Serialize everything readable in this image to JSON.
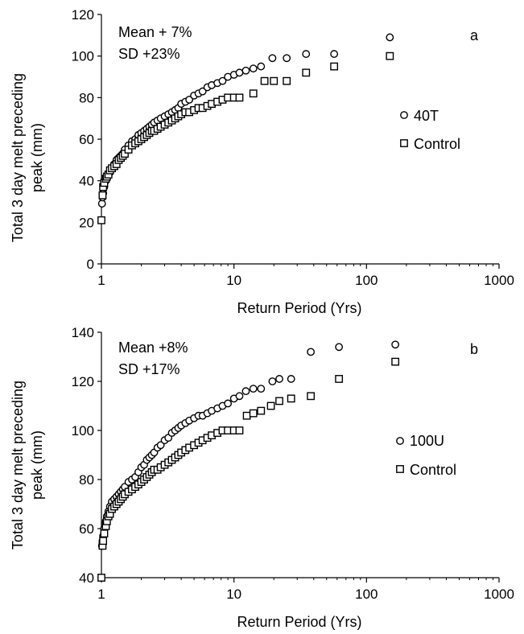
{
  "chart_data": [
    {
      "type": "scatter",
      "panel_label": "a",
      "annotations": [
        "Mean + 7%",
        "SD +23%"
      ],
      "xlabel": "Return Period (Yrs)",
      "ylabel_lines": [
        "Total 3 day melt preceding",
        "peak (mm)"
      ],
      "x_scale": "log",
      "xlim": [
        1,
        1000
      ],
      "ylim": [
        0,
        120
      ],
      "x_ticks": [
        1,
        10,
        100,
        1000
      ],
      "x_tick_labels": [
        "1",
        "10",
        "100",
        "1000"
      ],
      "y_ticks": [
        0,
        20,
        40,
        60,
        80,
        100,
        120
      ],
      "y_tick_labels": [
        "0",
        "20",
        "40",
        "60",
        "80",
        "100",
        "120"
      ],
      "legend_position": "right",
      "series": [
        {
          "name": "40T",
          "marker": "circle",
          "x": [
            1.01,
            1.02,
            1.03,
            1.05,
            1.08,
            1.1,
            1.13,
            1.16,
            1.2,
            1.25,
            1.3,
            1.35,
            1.4,
            1.45,
            1.5,
            1.6,
            1.7,
            1.8,
            1.9,
            2.0,
            2.1,
            2.2,
            2.3,
            2.4,
            2.5,
            2.65,
            2.8,
            3.0,
            3.2,
            3.4,
            3.6,
            3.8,
            4.0,
            4.3,
            4.6,
            5.0,
            5.4,
            5.8,
            6.3,
            6.8,
            7.5,
            8.2,
            9.0,
            10.0,
            11.0,
            12.3,
            14.0,
            16.0,
            19.5,
            25.0,
            35.0,
            57.0,
            150.0
          ],
          "y": [
            29,
            32,
            34,
            37,
            40,
            41,
            43,
            44,
            46,
            48,
            50,
            51,
            52,
            53,
            55,
            57,
            59,
            60,
            62,
            63,
            64,
            65,
            66,
            67,
            68,
            69,
            70,
            71,
            72,
            73,
            74,
            75,
            77,
            78,
            79,
            81,
            82,
            83,
            85,
            86,
            87,
            88,
            90,
            91,
            92,
            93,
            94,
            95,
            99,
            99,
            101,
            101,
            109
          ]
        },
        {
          "name": "Control",
          "marker": "square",
          "x": [
            1.0,
            1.02,
            1.03,
            1.05,
            1.08,
            1.1,
            1.13,
            1.16,
            1.2,
            1.25,
            1.3,
            1.35,
            1.4,
            1.45,
            1.5,
            1.6,
            1.7,
            1.8,
            1.9,
            2.0,
            2.1,
            2.2,
            2.3,
            2.4,
            2.5,
            2.65,
            2.8,
            3.0,
            3.2,
            3.4,
            3.6,
            3.8,
            4.0,
            4.3,
            4.6,
            5.0,
            5.4,
            5.8,
            6.3,
            6.8,
            7.5,
            8.2,
            9.0,
            10.0,
            11.0,
            14.0,
            17.0,
            20.0,
            25.0,
            35.0,
            57.0,
            150.0
          ],
          "y": [
            21,
            33,
            37,
            39,
            41,
            42,
            43,
            45,
            46,
            47,
            48,
            50,
            51,
            52,
            53,
            55,
            57,
            58,
            59,
            60,
            61,
            62,
            63,
            64,
            64,
            65,
            66,
            67,
            68,
            69,
            70,
            71,
            72,
            73,
            73,
            74,
            75,
            75,
            76,
            77,
            78,
            79,
            80,
            80,
            80,
            82,
            88,
            88,
            88,
            92,
            95,
            100
          ]
        }
      ]
    },
    {
      "type": "scatter",
      "panel_label": "b",
      "annotations": [
        "Mean +8%",
        "SD +17%"
      ],
      "xlabel": "Return Period (Yrs)",
      "ylabel_lines": [
        "Total 3 day melt preceding",
        "peak (mm)"
      ],
      "x_scale": "log",
      "xlim": [
        1,
        1000
      ],
      "ylim": [
        40,
        140
      ],
      "x_ticks": [
        1,
        10,
        100,
        1000
      ],
      "x_tick_labels": [
        "1",
        "10",
        "100",
        "1000"
      ],
      "y_ticks": [
        40,
        60,
        80,
        100,
        120,
        140
      ],
      "y_tick_labels": [
        "40",
        "60",
        "80",
        "100",
        "120",
        "140"
      ],
      "legend_position": "right",
      "series": [
        {
          "name": "100U",
          "marker": "circle",
          "x": [
            1.01,
            1.02,
            1.03,
            1.05,
            1.08,
            1.1,
            1.13,
            1.16,
            1.2,
            1.25,
            1.3,
            1.35,
            1.4,
            1.45,
            1.5,
            1.6,
            1.7,
            1.8,
            1.9,
            2.0,
            2.1,
            2.2,
            2.3,
            2.4,
            2.5,
            2.65,
            2.8,
            3.0,
            3.2,
            3.4,
            3.6,
            3.8,
            4.0,
            4.3,
            4.6,
            5.0,
            5.4,
            5.8,
            6.3,
            6.8,
            7.5,
            8.2,
            9.0,
            10.0,
            11.0,
            12.3,
            14.0,
            16.0,
            19.5,
            22.0,
            27.0,
            38.0,
            62.0,
            165.0
          ],
          "y": [
            53,
            55,
            57,
            60,
            63,
            65,
            67,
            69,
            71,
            72,
            73,
            74,
            75,
            76,
            77,
            79,
            80,
            81,
            83,
            85,
            86,
            88,
            89,
            90,
            91,
            93,
            94,
            96,
            97,
            99,
            100,
            101,
            102,
            103,
            104,
            105,
            106,
            106,
            107,
            108,
            109,
            110,
            111,
            113,
            114,
            116,
            117,
            117,
            120,
            121,
            121,
            132,
            134,
            135
          ]
        },
        {
          "name": "Control",
          "marker": "square",
          "x": [
            1.0,
            1.02,
            1.03,
            1.05,
            1.08,
            1.1,
            1.13,
            1.16,
            1.2,
            1.25,
            1.3,
            1.35,
            1.4,
            1.45,
            1.5,
            1.6,
            1.7,
            1.8,
            1.9,
            2.0,
            2.1,
            2.2,
            2.3,
            2.4,
            2.5,
            2.65,
            2.8,
            3.0,
            3.2,
            3.4,
            3.6,
            3.8,
            4.0,
            4.3,
            4.6,
            5.0,
            5.4,
            5.8,
            6.3,
            6.8,
            7.5,
            8.2,
            9.0,
            10.0,
            11.0,
            12.5,
            14.0,
            16.0,
            19.0,
            22.0,
            27.0,
            38.0,
            62.0,
            165.0
          ],
          "y": [
            40,
            53,
            55,
            58,
            61,
            63,
            65,
            66,
            68,
            69,
            70,
            71,
            72,
            73,
            74,
            75,
            76,
            77,
            78,
            79,
            80,
            81,
            82,
            83,
            84,
            84,
            85,
            86,
            87,
            88,
            89,
            90,
            91,
            92,
            93,
            94,
            95,
            96,
            97,
            98,
            99,
            100,
            100,
            100,
            100,
            106,
            107,
            108,
            110,
            112,
            113,
            114,
            121,
            128
          ]
        }
      ]
    }
  ]
}
